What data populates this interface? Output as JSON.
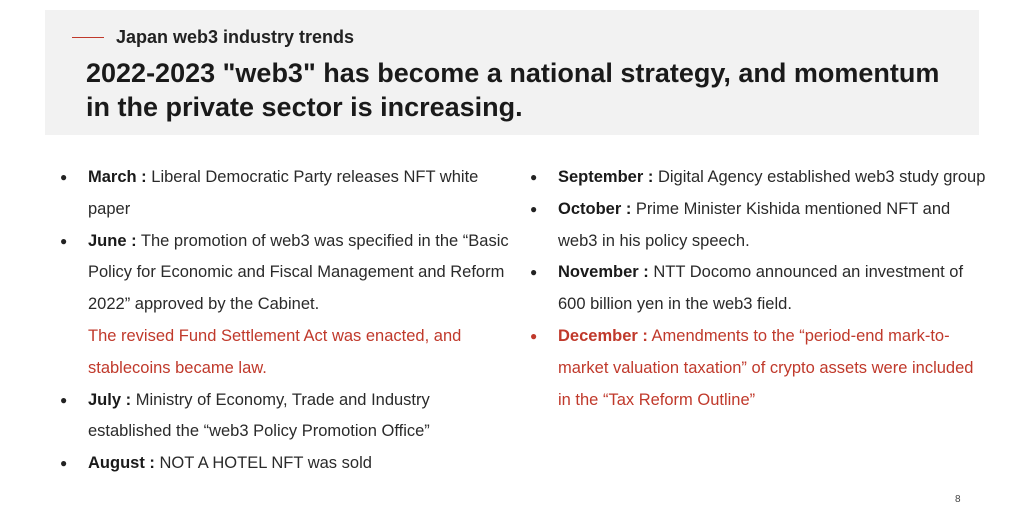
{
  "header": {
    "section_label": "Japan web3 industry trends",
    "headline": "2022-2023 \"web3\" has become a national strategy, and momentum in the private sector is increasing."
  },
  "left_column": [
    {
      "month": "March :",
      "text": " Liberal Democratic Party releases NFT white paper"
    },
    {
      "month": "June :",
      "text": " The promotion of web3 was specified in the “Basic Policy for Economic and Fiscal Management and Reform 2022” approved by the Cabinet.",
      "red_text": "The revised Fund Settlement Act was enacted, and stablecoins became law."
    },
    {
      "month": "July :",
      "text": " Ministry of Economy, Trade and Industry established the “web3 Policy Promotion Office”"
    },
    {
      "month": "August :",
      "text": " NOT A HOTEL NFT was sold"
    }
  ],
  "right_column": [
    {
      "month": "September :",
      "text": " Digital Agency established web3 study group"
    },
    {
      "month": "October :",
      "text": " Prime Minister Kishida mentioned NFT and web3 in his policy speech."
    },
    {
      "month": "November :",
      "text": " NTT Docomo announced an investment of 600 billion yen in the web3 field."
    },
    {
      "month": "December :",
      "text": " Amendments to the “period-end mark-to-market valuation taxation” of crypto assets were included in the “Tax Reform Outline”"
    }
  ],
  "bullet_glyph": "●",
  "page_number": "8",
  "colors": {
    "accent": "#c0392b",
    "header_band": "#f2f2f2",
    "text": "#2a2a2a"
  }
}
